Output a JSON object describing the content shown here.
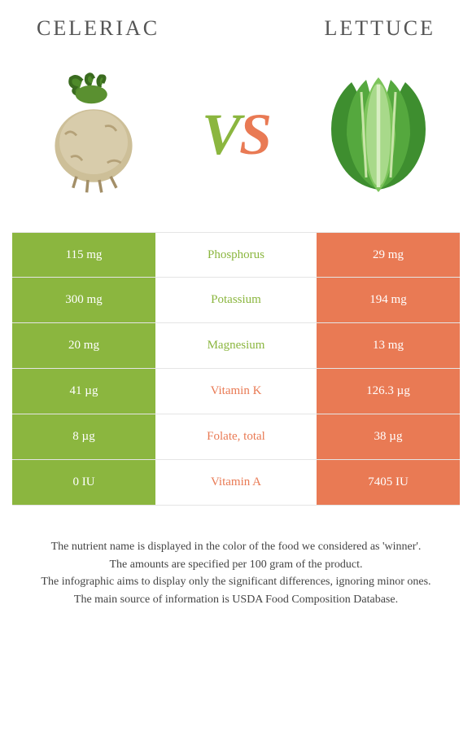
{
  "foods": {
    "left": {
      "name": "CELERIAC"
    },
    "right": {
      "name": "LETTUCE"
    }
  },
  "vs": {
    "v": "V",
    "s": "S"
  },
  "colors": {
    "green": "#8bb63f",
    "orange": "#e97a54",
    "border": "#e5e5e5",
    "background": "#ffffff"
  },
  "rows": [
    {
      "left": "115 mg",
      "label": "Phosphorus",
      "right": "29 mg",
      "winner": "left"
    },
    {
      "left": "300 mg",
      "label": "Potassium",
      "right": "194 mg",
      "winner": "left"
    },
    {
      "left": "20 mg",
      "label": "Magnesium",
      "right": "13 mg",
      "winner": "left"
    },
    {
      "left": "41 µg",
      "label": "Vitamin K",
      "right": "126.3 µg",
      "winner": "right"
    },
    {
      "left": "8 µg",
      "label": "Folate, total",
      "right": "38 µg",
      "winner": "right"
    },
    {
      "left": "0 IU",
      "label": "Vitamin A",
      "right": "7405 IU",
      "winner": "right"
    }
  ],
  "left_bg": "bg-green",
  "right_bg": "bg-orange",
  "winner_class": {
    "left": "txt-green",
    "right": "txt-orange"
  },
  "footnotes": [
    "The nutrient name is displayed in the color of the food we considered as 'winner'.",
    "The amounts are specified per 100 gram of the product.",
    "The infographic aims to display only the significant differences, ignoring minor ones.",
    "The main source of information is USDA Food Composition Database."
  ]
}
